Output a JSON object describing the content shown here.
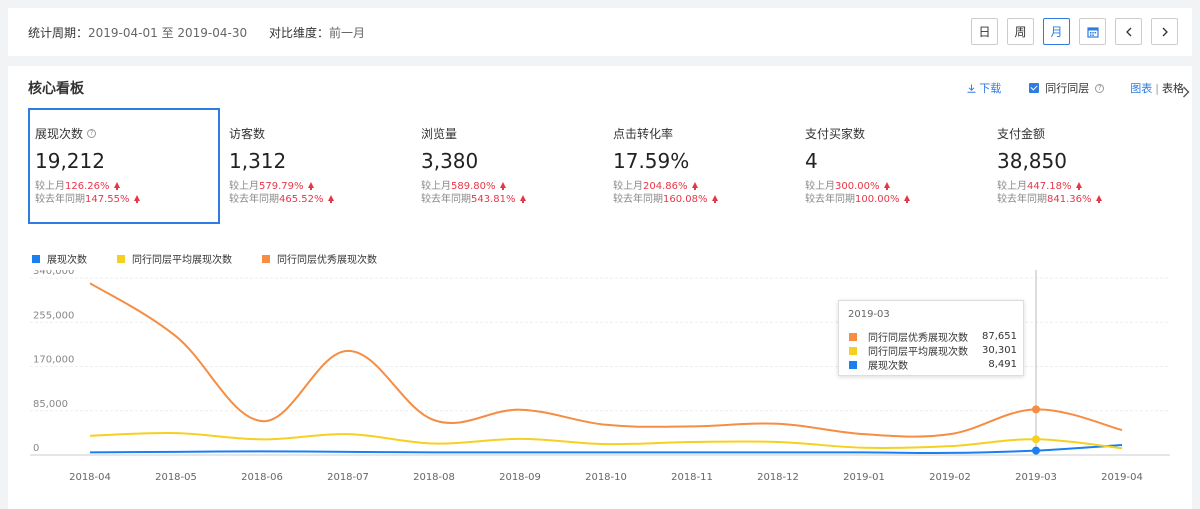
{
  "period": {
    "label": "统计周期：",
    "range": "2019-04-01 至 2019-04-30",
    "compare_label": "对比维度：",
    "compare_value": "前一月"
  },
  "period_buttons": [
    {
      "label": "日",
      "active": false
    },
    {
      "label": "周",
      "active": false
    },
    {
      "label": "月",
      "active": true
    }
  ],
  "panel": {
    "title": "核心看板",
    "download": "下载",
    "peer_label": "同行同层",
    "view_chart": "图表",
    "view_sep": "|",
    "view_table": "表格"
  },
  "cards": [
    {
      "name": "展现次数",
      "value": "19,212",
      "mom_label": "较上月",
      "mom": "126.26%",
      "yoy_label": "较去年同期",
      "yoy": "147.55%",
      "help": true,
      "active": true
    },
    {
      "name": "访客数",
      "value": "1,312",
      "mom_label": "较上月",
      "mom": "579.79%",
      "yoy_label": "较去年同期",
      "yoy": "465.52%",
      "help": false,
      "active": false
    },
    {
      "name": "浏览量",
      "value": "3,380",
      "mom_label": "较上月",
      "mom": "589.80%",
      "yoy_label": "较去年同期",
      "yoy": "543.81%",
      "help": false,
      "active": false
    },
    {
      "name": "点击转化率",
      "value": "17.59%",
      "mom_label": "较上月",
      "mom": "204.86%",
      "yoy_label": "较去年同期",
      "yoy": "160.08%",
      "help": false,
      "active": false
    },
    {
      "name": "支付买家数",
      "value": "4",
      "mom_label": "较上月",
      "mom": "300.00%",
      "yoy_label": "较去年同期",
      "yoy": "100.00%",
      "help": false,
      "active": false
    },
    {
      "name": "支付金额",
      "value": "38,850",
      "mom_label": "较上月",
      "mom": "447.18%",
      "yoy_label": "较去年同期",
      "yoy": "841.36%",
      "help": false,
      "active": false
    }
  ],
  "colors": {
    "accent": "#2e7ce3",
    "up": "#e6374a",
    "series_blue": "#1a7ff0",
    "series_yellow": "#f5d020",
    "series_orange": "#f58d42"
  },
  "chart_data": {
    "type": "line",
    "x": [
      "2018-04",
      "2018-05",
      "2018-06",
      "2018-07",
      "2018-08",
      "2018-09",
      "2018-10",
      "2018-11",
      "2018-12",
      "2019-01",
      "2019-02",
      "2019-03",
      "2019-04"
    ],
    "yticks": [
      "340,000",
      "255,000",
      "170,000",
      "85,000",
      "0"
    ],
    "ylim": [
      0,
      340000
    ],
    "series": [
      {
        "name": "展现次数",
        "color": "#1a7ff0",
        "values": [
          5000,
          6000,
          7000,
          6000,
          5000,
          5000,
          5000,
          5000,
          5000,
          5000,
          4000,
          8491,
          19212
        ]
      },
      {
        "name": "同行同层平均展现次数",
        "color": "#f5d020",
        "values": [
          37000,
          42000,
          30000,
          40000,
          22000,
          31000,
          21000,
          25000,
          25000,
          14000,
          17000,
          30301,
          13000
        ]
      },
      {
        "name": "同行同层优秀展现次数",
        "color": "#f58d42",
        "values": [
          330000,
          228000,
          65000,
          200000,
          67000,
          87000,
          58000,
          55000,
          60000,
          40000,
          40000,
          87651,
          48000
        ]
      }
    ],
    "tooltip": {
      "title": "2019-03",
      "rows": [
        {
          "label": "同行同层优秀展现次数",
          "value": "87,651",
          "color": "#f58d42"
        },
        {
          "label": "同行同层平均展现次数",
          "value": "30,301",
          "color": "#f5d020"
        },
        {
          "label": "展现次数",
          "value": "8,491",
          "color": "#1a7ff0"
        }
      ]
    },
    "grid": true,
    "legend": "top-left"
  }
}
